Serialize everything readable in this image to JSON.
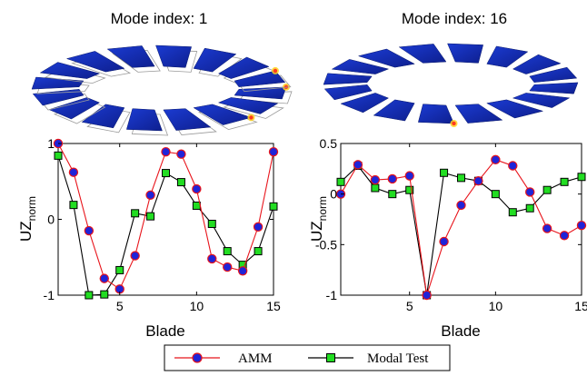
{
  "panels": [
    {
      "mode_title": "Mode index: 1",
      "highlight_blades": [
        0,
        2,
        15
      ],
      "chart": {
        "type": "line",
        "xlabel": "Blade",
        "ylabel_main": "UZ",
        "ylabel_sub": "norm",
        "xlim": [
          1,
          15
        ],
        "ylim": [
          -1,
          1
        ],
        "xticks": [
          5,
          10,
          15
        ],
        "yticks": [
          -1,
          0,
          1
        ],
        "grid": false,
        "series": [
          {
            "name": "AMM",
            "x": [
              1,
              2,
              3,
              4,
              5,
              6,
              7,
              8,
              9,
              10,
              11,
              12,
              13,
              14,
              15
            ],
            "values": [
              1.0,
              0.62,
              -0.15,
              -0.78,
              -0.92,
              -0.48,
              0.32,
              0.89,
              0.86,
              0.4,
              -0.52,
              -0.63,
              -0.68,
              -0.1,
              0.89
            ]
          },
          {
            "name": "Modal Test",
            "x": [
              1,
              2,
              3,
              4,
              5,
              6,
              7,
              8,
              9,
              10,
              11,
              12,
              13,
              14,
              15
            ],
            "values": [
              0.84,
              0.19,
              -1.0,
              -0.99,
              -0.67,
              0.08,
              0.04,
              0.61,
              0.49,
              0.18,
              -0.06,
              -0.42,
              -0.6,
              -0.42,
              0.17
            ]
          }
        ]
      }
    },
    {
      "mode_title": "Mode index: 16",
      "highlight_blades": [
        4
      ],
      "chart": {
        "type": "line",
        "xlabel": "Blade",
        "ylabel_main": "UZ",
        "ylabel_sub": "norm",
        "xlim": [
          1,
          15
        ],
        "ylim": [
          -1,
          0.5
        ],
        "xticks": [
          5,
          10,
          15
        ],
        "yticks": [
          -1,
          -0.5,
          0,
          0.5
        ],
        "grid": false,
        "series": [
          {
            "name": "AMM",
            "x": [
              1,
              2,
              3,
              4,
              5,
              6,
              7,
              8,
              9,
              10,
              11,
              12,
              13,
              14,
              15
            ],
            "values": [
              0.0,
              0.29,
              0.14,
              0.15,
              0.18,
              -1.0,
              -0.47,
              -0.11,
              0.13,
              0.34,
              0.28,
              0.02,
              -0.34,
              -0.41,
              -0.31
            ]
          },
          {
            "name": "Modal Test",
            "x": [
              1,
              2,
              3,
              4,
              5,
              6,
              7,
              8,
              9,
              10,
              11,
              12,
              13,
              14,
              15
            ],
            "values": [
              0.12,
              0.28,
              0.06,
              0.0,
              0.04,
              -1.0,
              0.21,
              0.16,
              0.13,
              0.0,
              -0.18,
              -0.14,
              0.04,
              0.12,
              0.17
            ]
          }
        ]
      }
    }
  ],
  "legend": {
    "placement": "bottom-center",
    "amm_label": "AMM",
    "test_label": "Modal Test"
  },
  "colors": {
    "amm_line": "#e8141b",
    "amm_marker_fill": "#1f24d8",
    "test_line": "#000000",
    "test_marker_fill": "#22dd22",
    "blade_fill": "#1b3bd2",
    "blade_dark": "#0e1f8f",
    "ghost_outline": "#9a9a9a",
    "hot_spot": "#ff3b1e",
    "warm_spot": "#ffd21e"
  }
}
